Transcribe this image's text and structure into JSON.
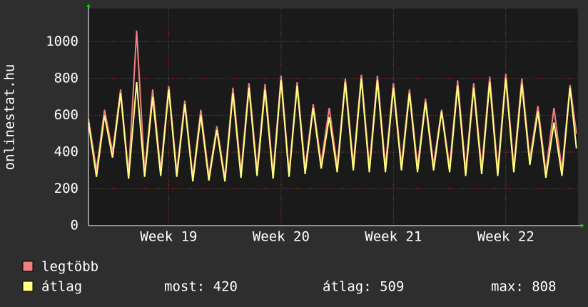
{
  "chart_data": {
    "type": "line",
    "ylabel": "onlinestat.hu",
    "x": [
      0,
      0.5,
      1,
      1.5,
      2,
      2.5,
      3,
      3.5,
      4,
      4.5,
      5,
      5.5,
      6,
      6.5,
      7,
      7.5,
      8,
      8.5,
      9,
      9.5,
      10,
      10.5,
      11,
      11.5,
      12,
      12.5,
      13,
      13.5,
      14,
      14.5,
      15,
      15.5,
      16,
      16.5,
      17,
      17.5,
      18,
      18.5,
      19,
      19.5,
      20,
      20.5,
      21,
      21.5,
      22,
      22.5,
      23,
      23.5,
      24,
      24.5,
      25,
      25.5,
      26,
      26.5,
      27,
      27.5,
      28,
      28.5,
      29,
      29.5,
      30,
      30.4
    ],
    "series": [
      {
        "name": "legtöbb",
        "color": "#f08080",
        "values": [
          580,
          300,
          630,
          400,
          740,
          280,
          1060,
          290,
          740,
          300,
          760,
          290,
          680,
          260,
          630,
          270,
          540,
          260,
          750,
          290,
          775,
          300,
          770,
          280,
          815,
          290,
          780,
          310,
          660,
          340,
          640,
          320,
          800,
          330,
          820,
          320,
          815,
          320,
          775,
          330,
          740,
          320,
          690,
          330,
          630,
          320,
          790,
          300,
          775,
          310,
          810,
          300,
          825,
          320,
          800,
          360,
          650,
          290,
          640,
          300,
          765,
          500
        ]
      },
      {
        "name": "átlag",
        "color": "#ffff80",
        "values": [
          560,
          265,
          600,
          370,
          720,
          255,
          780,
          265,
          700,
          270,
          740,
          265,
          660,
          240,
          600,
          245,
          520,
          240,
          720,
          260,
          750,
          270,
          740,
          255,
          790,
          265,
          760,
          280,
          640,
          310,
          590,
          290,
          780,
          300,
          800,
          290,
          790,
          290,
          750,
          300,
          720,
          290,
          670,
          300,
          620,
          290,
          760,
          270,
          750,
          280,
          780,
          270,
          800,
          290,
          770,
          330,
          620,
          260,
          560,
          270,
          750,
          420
        ]
      }
    ],
    "xlim": [
      0,
      30.5
    ],
    "xticks": [
      {
        "value": 5,
        "label": "Week 19"
      },
      {
        "value": 12,
        "label": "Week 20"
      },
      {
        "value": 19,
        "label": "Week 21"
      },
      {
        "value": 26,
        "label": "Week 22"
      }
    ],
    "ylim": [
      0,
      1180
    ],
    "yticks": [
      0,
      200,
      400,
      600,
      800,
      1000
    ],
    "grid": true,
    "stats": [
      "most: 420",
      "átlag: 509",
      "max: 808"
    ]
  }
}
